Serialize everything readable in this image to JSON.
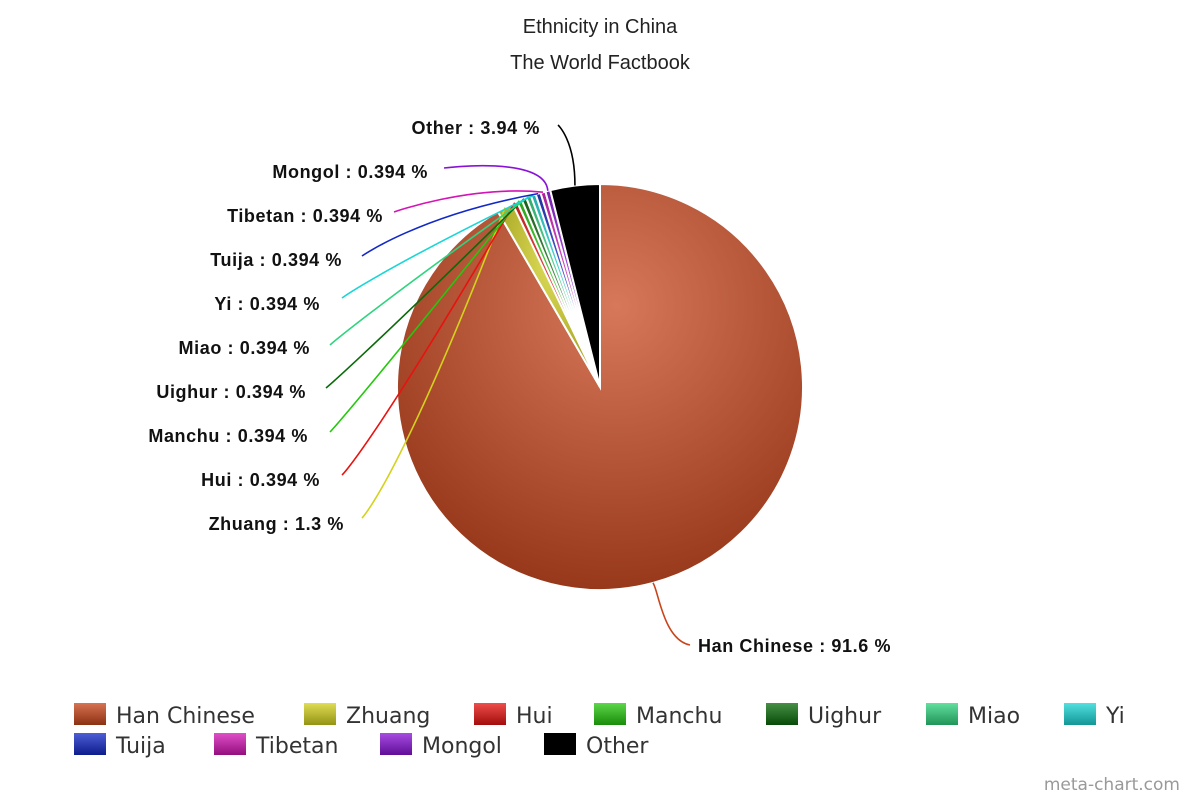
{
  "chart_data": {
    "type": "pie",
    "title": "Ethnicity in China",
    "subtitle": "The World Factbook",
    "categories": [
      "Han Chinese",
      "Zhuang",
      "Hui",
      "Manchu",
      "Uighur",
      "Miao",
      "Yi",
      "Tuija",
      "Tibetan",
      "Mongol",
      "Other"
    ],
    "values": [
      91.6,
      1.3,
      0.394,
      0.394,
      0.394,
      0.394,
      0.394,
      0.394,
      0.394,
      0.394,
      3.94
    ],
    "unit": "%",
    "data_labels": [
      "Han Chinese : 91.6 %",
      "Zhuang : 1.3 %",
      "Hui : 0.394 %",
      "Manchu : 0.394 %",
      "Uighur : 0.394 %",
      "Miao : 0.394 %",
      "Yi : 0.394 %",
      "Tuija : 0.394 %",
      "Tibetan : 0.394 %",
      "Mongol : 0.394 %",
      "Other : 3.94 %"
    ],
    "colors": [
      "#c8441a",
      "#d4d21c",
      "#e8120f",
      "#24c80d",
      "#0a6a0a",
      "#2ed47e",
      "#19d6d6",
      "#1228c8",
      "#d414b4",
      "#8a12d8",
      "#000000"
    ],
    "legend": {
      "position": "bottom",
      "entries": [
        "Han Chinese",
        "Zhuang",
        "Hui",
        "Manchu",
        "Uighur",
        "Miao",
        "Yi",
        "Tuija",
        "Tibetan",
        "Mongol",
        "Other"
      ]
    }
  },
  "credit": "meta-chart.com"
}
